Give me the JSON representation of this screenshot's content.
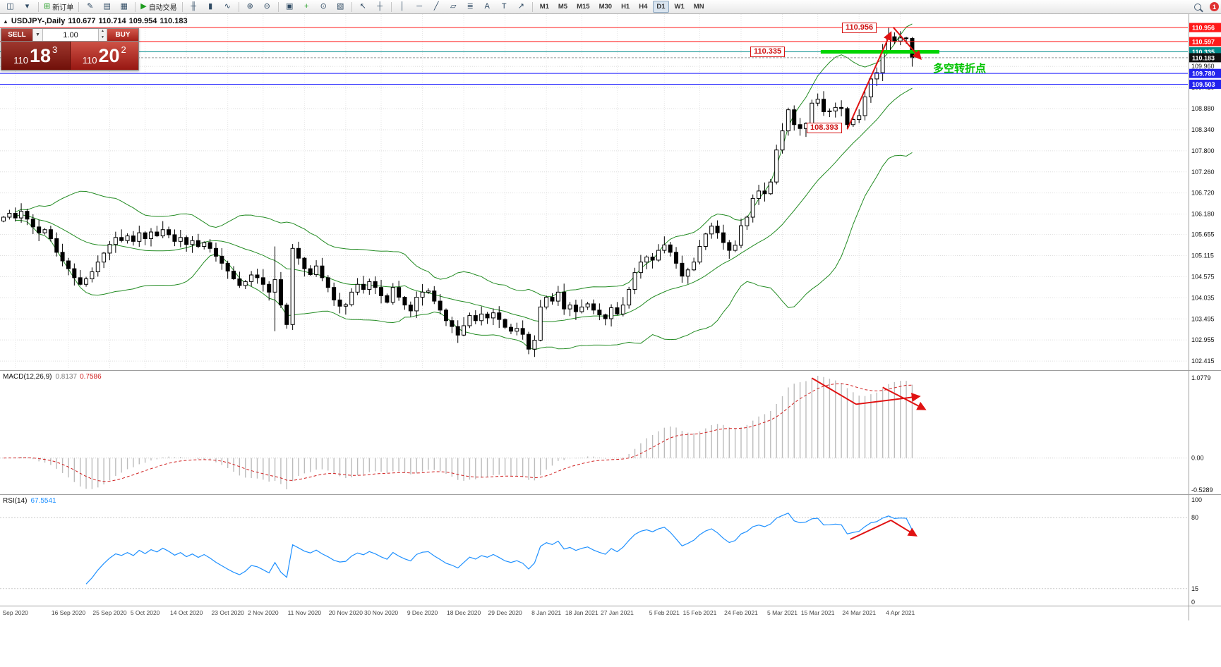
{
  "toolbar": {
    "groups": [
      {
        "items": [
          {
            "name": "new-chart-button",
            "glyph": "◫"
          },
          {
            "name": "profiles-button",
            "glyph": "▾"
          }
        ]
      },
      {
        "items": [
          {
            "name": "new-order-button",
            "glyph": "⊞",
            "glyph_color": "#1d9b1d",
            "label": "新订单"
          }
        ]
      },
      {
        "items": [
          {
            "name": "metaeditor-button",
            "glyph": "✎"
          },
          {
            "name": "market-watch-button",
            "glyph": "▤"
          },
          {
            "name": "terminal-button",
            "glyph": "▦"
          }
        ]
      },
      {
        "items": [
          {
            "name": "autotrading-button",
            "glyph": "▶",
            "glyph_color": "#1d9b1d",
            "label": "自动交易"
          }
        ]
      },
      {
        "items": [
          {
            "name": "bars-chart-button",
            "glyph": "╫"
          },
          {
            "name": "candlestick-chart-button",
            "glyph": "▮"
          },
          {
            "name": "line-chart-button",
            "glyph": "∿"
          }
        ]
      },
      {
        "items": [
          {
            "name": "zoom-in-button",
            "glyph": "⊕"
          },
          {
            "name": "zoom-out-button",
            "glyph": "⊖"
          }
        ]
      },
      {
        "items": [
          {
            "name": "tile-windows-button",
            "glyph": "▣"
          },
          {
            "name": "add-indicator-button",
            "glyph": "+",
            "glyph_color": "#1d9b1d"
          },
          {
            "name": "periods-button",
            "glyph": "⊙"
          },
          {
            "name": "templates-button",
            "glyph": "▧"
          }
        ]
      },
      {
        "items": [
          {
            "name": "cursor-button",
            "glyph": "↖"
          },
          {
            "name": "crosshair-button",
            "glyph": "┼"
          }
        ]
      },
      {
        "items": [
          {
            "name": "vertical-line-button",
            "glyph": "│"
          },
          {
            "name": "horizontal-line-button",
            "glyph": "─"
          },
          {
            "name": "trendline-button",
            "glyph": "╱"
          },
          {
            "name": "channel-button",
            "glyph": "▱"
          },
          {
            "name": "fibonacci-button",
            "glyph": "≣"
          },
          {
            "name": "text-button",
            "glyph": "A"
          },
          {
            "name": "label-button",
            "glyph": "T"
          },
          {
            "name": "arrows-button",
            "glyph": "↗"
          }
        ]
      }
    ],
    "timeframes": [
      {
        "label": "M1"
      },
      {
        "label": "M5"
      },
      {
        "label": "M15"
      },
      {
        "label": "M30"
      },
      {
        "label": "H1"
      },
      {
        "label": "H4"
      },
      {
        "label": "D1",
        "active": true
      },
      {
        "label": "W1"
      },
      {
        "label": "MN"
      }
    ],
    "notification_count": "1"
  },
  "chart_header": {
    "symbol_period": "USDJPY-,Daily",
    "open": "110.677",
    "high": "110.714",
    "low": "109.954",
    "close": "110.183"
  },
  "trade_panel": {
    "sell_label": "SELL",
    "buy_label": "BUY",
    "volume": "1.00",
    "sell_price": {
      "big_figure": "110",
      "pips": "18",
      "pip_fraction": "3"
    },
    "buy_price": {
      "big_figure": "110",
      "pips": "20",
      "pip_fraction": "2"
    }
  },
  "chart_data": {
    "type": "candlestick",
    "symbol": "USDJPY",
    "timeframe": "Daily",
    "style": {
      "candle_up": "#ffffff",
      "candle_down": "#000000",
      "candle_border": "#000000",
      "grid": "#dedede",
      "accent_red": "#e01212"
    },
    "price_axis": {
      "min": 102.2,
      "max": 111.3,
      "grid_labels": [
        109.96,
        109.42,
        108.88,
        108.34,
        107.8,
        107.26,
        106.72,
        106.18,
        105.655,
        105.115,
        104.575,
        104.035,
        103.495,
        102.955,
        102.415
      ],
      "badges": [
        {
          "text": "110.956",
          "price": 110.956,
          "bg": "#ff1a1a",
          "fg": "#ffffff"
        },
        {
          "text": "110.597",
          "price": 110.597,
          "bg": "#ff1a1a",
          "fg": "#ffffff"
        },
        {
          "text": "110.335",
          "price": 110.335,
          "bg": "#008b8b",
          "fg": "#ffffff"
        },
        {
          "text": "110.183",
          "price": 110.183,
          "bg": "#111111",
          "fg": "#ffffff"
        },
        {
          "text": "109.780",
          "price": 109.78,
          "bg": "#2222ee",
          "fg": "#ffffff"
        },
        {
          "text": "109.503",
          "price": 109.503,
          "bg": "#2222ee",
          "fg": "#ffffff"
        }
      ]
    },
    "x_labels": [
      {
        "i": 2,
        "label": "Sep 2020"
      },
      {
        "i": 11,
        "label": "16 Sep 2020"
      },
      {
        "i": 18,
        "label": "25 Sep 2020"
      },
      {
        "i": 24,
        "label": "5 Oct 2020"
      },
      {
        "i": 31,
        "label": "14 Oct 2020"
      },
      {
        "i": 38,
        "label": "23 Oct 2020"
      },
      {
        "i": 44,
        "label": "2 Nov 2020"
      },
      {
        "i": 51,
        "label": "11 Nov 2020"
      },
      {
        "i": 58,
        "label": "20 Nov 2020"
      },
      {
        "i": 64,
        "label": "30 Nov 2020"
      },
      {
        "i": 71,
        "label": "9 Dec 2020"
      },
      {
        "i": 78,
        "label": "18 Dec 2020"
      },
      {
        "i": 85,
        "label": "29 Dec 2020"
      },
      {
        "i": 92,
        "label": "8 Jan 2021"
      },
      {
        "i": 98,
        "label": "18 Jan 2021"
      },
      {
        "i": 104,
        "label": "27 Jan 2021"
      },
      {
        "i": 112,
        "label": "5 Feb 2021"
      },
      {
        "i": 118,
        "label": "15 Feb 2021"
      },
      {
        "i": 125,
        "label": "24 Feb 2021"
      },
      {
        "i": 132,
        "label": "5 Mar 2021"
      },
      {
        "i": 138,
        "label": "15 Mar 2021"
      },
      {
        "i": 145,
        "label": "24 Mar 2021"
      },
      {
        "i": 152,
        "label": "4 Apr 2021"
      }
    ],
    "candles": {
      "first_open": 106.0,
      "closes": [
        106.1,
        106.2,
        106.08,
        106.25,
        106.05,
        105.85,
        105.7,
        105.78,
        105.55,
        105.2,
        104.98,
        104.78,
        104.55,
        104.38,
        104.52,
        104.7,
        104.95,
        105.18,
        105.4,
        105.58,
        105.5,
        105.62,
        105.48,
        105.7,
        105.55,
        105.72,
        105.62,
        105.78,
        105.65,
        105.48,
        105.58,
        105.4,
        105.5,
        105.35,
        105.45,
        105.3,
        105.1,
        104.92,
        104.72,
        104.52,
        104.35,
        104.45,
        104.62,
        104.55,
        104.38,
        104.18,
        104.5,
        103.85,
        103.35,
        105.3,
        105.05,
        104.78,
        104.63,
        104.85,
        104.55,
        104.3,
        103.98,
        103.82,
        103.86,
        104.18,
        104.38,
        104.25,
        104.45,
        104.3,
        104.09,
        103.92,
        104.3,
        104.05,
        103.85,
        103.7,
        104.05,
        104.18,
        104.21,
        103.95,
        103.72,
        103.45,
        103.3,
        103.08,
        103.32,
        103.58,
        103.45,
        103.62,
        103.52,
        103.65,
        103.48,
        103.28,
        103.18,
        103.25,
        103.1,
        102.72,
        102.95,
        103.8,
        104.05,
        103.95,
        104.18,
        103.75,
        103.85,
        103.68,
        103.8,
        103.88,
        103.72,
        103.6,
        103.5,
        103.78,
        103.62,
        103.85,
        104.25,
        104.68,
        104.95,
        105.08,
        105.0,
        105.25,
        105.39,
        105.2,
        104.92,
        104.59,
        104.75,
        104.95,
        105.35,
        105.67,
        105.87,
        105.7,
        105.45,
        105.25,
        105.38,
        105.88,
        106.1,
        106.58,
        106.77,
        106.7,
        107.0,
        107.82,
        108.31,
        108.85,
        108.47,
        108.37,
        108.5,
        109.02,
        109.12,
        108.8,
        108.82,
        108.91,
        108.88,
        108.47,
        108.6,
        108.7,
        109.18,
        109.64,
        109.8,
        110.34,
        110.72,
        110.61,
        110.69,
        110.68,
        110.183
      ],
      "overrides": {
        "46": {
          "h": 105.35,
          "l": 103.18
        },
        "89": {
          "l": 102.59
        },
        "143": {
          "l": 108.393
        },
        "150": {
          "h": 110.956
        },
        "154": {
          "o": 110.677,
          "h": 110.714,
          "l": 109.954,
          "c": 110.183
        }
      }
    },
    "bollinger": {
      "period": 20,
      "deviation": 2,
      "color": "#228B22"
    },
    "hlines": [
      {
        "price": 110.956,
        "color": "#ff1a1a",
        "width": 1
      },
      {
        "price": 110.597,
        "color": "#ff1a1a",
        "width": 1
      },
      {
        "price": 110.335,
        "color": "#008b8b",
        "width": 1
      },
      {
        "price": 109.78,
        "color": "#1a1aff",
        "width": 1
      },
      {
        "price": 109.503,
        "color": "#1a1aff",
        "width": 1
      }
    ],
    "bid_line": {
      "price": 110.183,
      "color": "#999999"
    },
    "green_segment": {
      "price": 110.335,
      "i_from": 138.5,
      "i_to": 158.6,
      "color": "#00d400",
      "width": 5
    },
    "flags": [
      {
        "text": "110.956"
      },
      {
        "text": "110.335"
      },
      {
        "text": "108.393"
      }
    ],
    "annotation_text": {
      "text": "多空转折点",
      "color": "#00c300"
    },
    "arrows_price": [
      {
        "x1i": 143,
        "p1": 108.35,
        "x2i": 150.3,
        "p2": 110.8,
        "head": true
      },
      {
        "x1i": 150.8,
        "p1": 110.96,
        "x2i": 155.3,
        "p2": 110.18,
        "head": true
      }
    ],
    "macd": {
      "label": "MACD(12,26,9)",
      "value_main": "0.8137",
      "value_signal": "0.7586",
      "scale": {
        "max": "1.0779",
        "zero": "0.00",
        "min": "-0.5289"
      },
      "histogram_color": "#bcbcbc",
      "signal_color": "#d02020",
      "arrows": [
        {
          "x1i": 137,
          "v1": 1.04,
          "x2i": 144.5,
          "v2": 0.7,
          "head": false
        },
        {
          "x1i": 144.5,
          "v1": 0.7,
          "x2i": 155,
          "v2": 0.8,
          "head": true
        },
        {
          "x1i": 149,
          "v1": 0.92,
          "x2i": 156,
          "v2": 0.64,
          "head": true
        }
      ]
    },
    "rsi": {
      "label": "RSI(14)",
      "value": "67.5541",
      "color": "#1E90FF",
      "levels": [
        80,
        15
      ],
      "scale_labels": [
        {
          "v": 100,
          "label": "100"
        },
        {
          "v": 80,
          "label": "80"
        },
        {
          "v": 15,
          "label": "15"
        },
        {
          "v": 0,
          "label": "0"
        }
      ],
      "arrows": [
        {
          "x1i": 143.5,
          "v1": 60,
          "x2i": 150.4,
          "v2": 77.5,
          "head": false
        },
        {
          "x1i": 150.4,
          "v1": 77.5,
          "x2i": 154.5,
          "v2": 64,
          "head": true
        }
      ]
    }
  }
}
